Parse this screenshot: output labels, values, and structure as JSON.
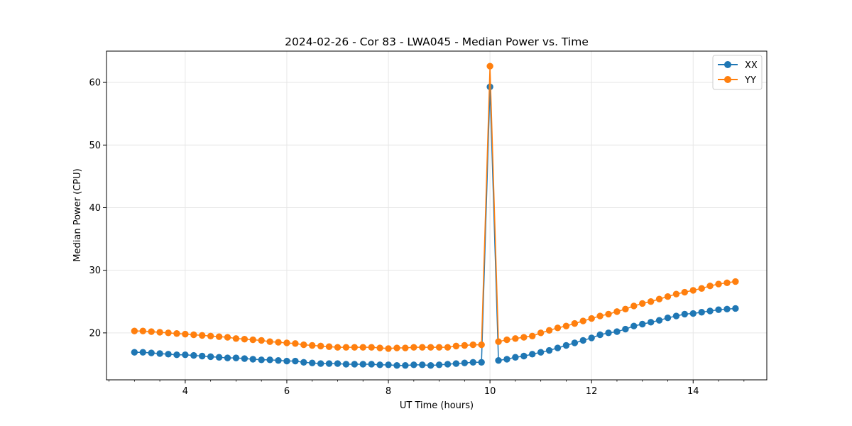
{
  "chart_data": {
    "type": "line",
    "title": "2024-02-26 - Cor 83 - LWA045 - Median Power vs. Time",
    "xlabel": "UT Time (hours)",
    "ylabel": "Median Power (CPU)",
    "xlim": [
      2.45,
      15.45
    ],
    "ylim": [
      12.5,
      65.0
    ],
    "xticks": [
      4,
      6,
      8,
      10,
      12,
      14
    ],
    "xtick_labels": [
      "4",
      "6",
      "8",
      "10",
      "12",
      "14"
    ],
    "yticks": [
      20,
      30,
      40,
      50,
      60
    ],
    "ytick_labels": [
      "20",
      "30",
      "40",
      "50",
      "60"
    ],
    "grid": true,
    "legend_position": "top-right",
    "x": [
      3.0,
      3.167,
      3.333,
      3.5,
      3.667,
      3.833,
      4.0,
      4.167,
      4.333,
      4.5,
      4.667,
      4.833,
      5.0,
      5.167,
      5.333,
      5.5,
      5.667,
      5.833,
      6.0,
      6.167,
      6.333,
      6.5,
      6.667,
      6.833,
      7.0,
      7.167,
      7.333,
      7.5,
      7.667,
      7.833,
      8.0,
      8.167,
      8.333,
      8.5,
      8.667,
      8.833,
      9.0,
      9.167,
      9.333,
      9.5,
      9.667,
      9.833,
      10.0,
      10.167,
      10.333,
      10.5,
      10.667,
      10.833,
      11.0,
      11.167,
      11.333,
      11.5,
      11.667,
      11.833,
      12.0,
      12.167,
      12.333,
      12.5,
      12.667,
      12.833,
      13.0,
      13.167,
      13.333,
      13.5,
      13.667,
      13.833,
      14.0,
      14.167,
      14.333,
      14.5,
      14.667,
      14.833
    ],
    "series": [
      {
        "name": "XX",
        "color": "#1f77b4",
        "values": [
          16.9,
          16.9,
          16.8,
          16.7,
          16.6,
          16.5,
          16.5,
          16.4,
          16.3,
          16.2,
          16.1,
          16.0,
          16.0,
          15.9,
          15.8,
          15.7,
          15.7,
          15.6,
          15.5,
          15.5,
          15.3,
          15.2,
          15.1,
          15.1,
          15.1,
          15.0,
          15.0,
          15.0,
          15.0,
          14.9,
          14.9,
          14.8,
          14.8,
          14.9,
          14.9,
          14.8,
          14.9,
          15.0,
          15.1,
          15.2,
          15.3,
          15.3,
          59.3,
          15.6,
          15.8,
          16.1,
          16.3,
          16.6,
          16.9,
          17.2,
          17.6,
          18.0,
          18.4,
          18.8,
          19.2,
          19.7,
          20.0,
          20.2,
          20.6,
          21.1,
          21.4,
          21.7,
          22.0,
          22.4,
          22.7,
          23.0,
          23.1,
          23.3,
          23.5,
          23.7,
          23.8,
          23.9
        ]
      },
      {
        "name": "YY",
        "color": "#ff7f0e",
        "values": [
          20.3,
          20.3,
          20.2,
          20.1,
          20.0,
          19.9,
          19.8,
          19.7,
          19.6,
          19.5,
          19.4,
          19.3,
          19.1,
          19.0,
          18.9,
          18.8,
          18.6,
          18.5,
          18.4,
          18.3,
          18.1,
          18.0,
          17.9,
          17.8,
          17.7,
          17.7,
          17.7,
          17.7,
          17.7,
          17.6,
          17.5,
          17.6,
          17.6,
          17.7,
          17.7,
          17.7,
          17.7,
          17.7,
          17.9,
          18.0,
          18.1,
          18.1,
          62.6,
          18.6,
          18.9,
          19.1,
          19.3,
          19.5,
          20.0,
          20.4,
          20.8,
          21.1,
          21.5,
          21.9,
          22.3,
          22.7,
          23.0,
          23.4,
          23.8,
          24.3,
          24.7,
          25.0,
          25.4,
          25.8,
          26.2,
          26.5,
          26.8,
          27.1,
          27.5,
          27.8,
          28.0,
          28.2
        ]
      }
    ]
  }
}
